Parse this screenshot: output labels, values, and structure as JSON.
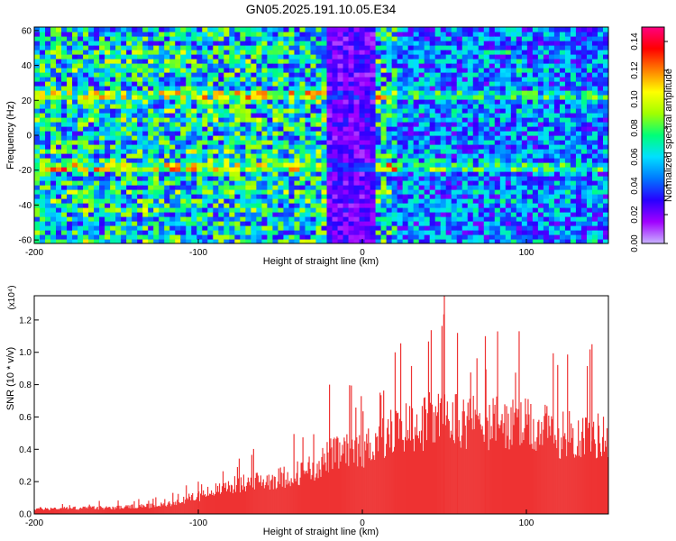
{
  "title": "GN05.2025.191.10.05.E34",
  "colors": {
    "colormap": [
      "#c8b4ff",
      "#a000ff",
      "#2800ff",
      "#0078ff",
      "#00e0ff",
      "#00ff78",
      "#a0ff00",
      "#ffff00",
      "#ff8000",
      "#ff0000",
      "#ff0080"
    ],
    "snr_fill": "#ee3333"
  },
  "chart_data": [
    {
      "type": "heatmap",
      "title": "GN05.2025.191.10.05.E34",
      "xlabel": "Height of straight line (km)",
      "ylabel": "Frequency (Hz)",
      "xlim": [
        -200,
        150
      ],
      "ylim": [
        -62,
        62
      ],
      "xticks": [
        "-200",
        "-100",
        "0",
        "100"
      ],
      "yticks": [
        "60",
        "40",
        "20",
        "0",
        "-20",
        "-40",
        "-60"
      ],
      "colorbar": {
        "label": "Normalized spectral amplitude",
        "range": [
          0,
          0.15
        ],
        "ticks": [
          "0.00",
          "0.02",
          "0.04",
          "0.06",
          "0.08",
          "0.10",
          "0.12",
          "0.14"
        ]
      },
      "features": {
        "bright_frequency_bands_hz": [
          22,
          -20
        ],
        "low_amplitude_column_km": [
          -25,
          5
        ]
      }
    },
    {
      "type": "area",
      "xlabel": "Height of straight line (km)",
      "ylabel": "SNR (10 * v/v)",
      "multiplier": "(x10⁴)",
      "xlim": [
        -200,
        150
      ],
      "ylim": [
        0,
        1.35
      ],
      "xticks": [
        "-200",
        "-100",
        "0",
        "100"
      ],
      "yticks": [
        "0.0",
        "0.2",
        "0.4",
        "0.6",
        "0.8",
        "1.0",
        "1.2"
      ],
      "envelope": {
        "x": [
          -200,
          -150,
          -120,
          -100,
          -80,
          -50,
          -30,
          -20,
          0,
          20,
          50,
          80,
          100,
          120,
          150
        ],
        "y": [
          0.04,
          0.05,
          0.07,
          0.14,
          0.22,
          0.28,
          0.35,
          0.45,
          0.5,
          0.65,
          0.75,
          0.7,
          0.68,
          0.62,
          0.6
        ]
      },
      "peaks": [
        {
          "x": 50,
          "y": 1.35
        },
        {
          "x": 58,
          "y": 1.12
        },
        {
          "x": 75,
          "y": 1.1
        },
        {
          "x": 20,
          "y": 1.0
        },
        {
          "x": 140,
          "y": 1.05
        },
        {
          "x": -20,
          "y": 0.8
        },
        {
          "x": -100,
          "y": 0.2
        }
      ]
    }
  ]
}
